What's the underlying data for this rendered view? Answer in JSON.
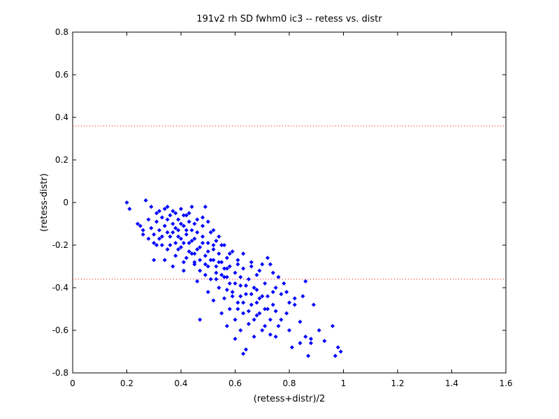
{
  "chart_data": {
    "type": "scatter",
    "title": "191v2 rh SD fwhm0 ic3 -- retess vs. distr",
    "xlabel": "(retess+distr)/2",
    "ylabel": "(retess-distr)",
    "xlim": [
      0,
      1.6
    ],
    "ylim": [
      -0.8,
      0.8
    ],
    "xticks": [
      "0",
      "0.2",
      "0.4",
      "0.6",
      "0.8",
      "1",
      "1.2",
      "1.4",
      "1.6"
    ],
    "yticks": [
      "-0.8",
      "-0.6",
      "-0.4",
      "-0.2",
      "0",
      "0.2",
      "0.4",
      "0.6",
      "0.8"
    ],
    "grid": false,
    "reference_lines": [
      {
        "y": 0.36,
        "color": "#ff0000",
        "style": "dotted"
      },
      {
        "y": -0.36,
        "color": "#ff0000",
        "style": "dotted"
      }
    ],
    "series": [
      {
        "color": "#0000ff",
        "marker": "diamond",
        "points": [
          [
            0.2,
            0.0
          ],
          [
            0.21,
            -0.03
          ],
          [
            0.27,
            0.01
          ],
          [
            0.24,
            -0.1
          ],
          [
            0.25,
            -0.11
          ],
          [
            0.26,
            -0.13
          ],
          [
            0.28,
            -0.08
          ],
          [
            0.29,
            -0.12
          ],
          [
            0.3,
            -0.15
          ],
          [
            0.3,
            -0.19
          ],
          [
            0.31,
            -0.05
          ],
          [
            0.31,
            -0.09
          ],
          [
            0.32,
            -0.13
          ],
          [
            0.32,
            -0.17
          ],
          [
            0.33,
            -0.07
          ],
          [
            0.33,
            -0.2
          ],
          [
            0.34,
            -0.03
          ],
          [
            0.34,
            -0.11
          ],
          [
            0.35,
            -0.14
          ],
          [
            0.35,
            -0.22
          ],
          [
            0.36,
            -0.06
          ],
          [
            0.36,
            -0.16
          ],
          [
            0.37,
            -0.04
          ],
          [
            0.37,
            -0.1
          ],
          [
            0.38,
            -0.19
          ],
          [
            0.38,
            -0.25
          ],
          [
            0.39,
            -0.08
          ],
          [
            0.39,
            -0.13
          ],
          [
            0.4,
            -0.03
          ],
          [
            0.4,
            -0.17
          ],
          [
            0.4,
            -0.21
          ],
          [
            0.41,
            -0.11
          ],
          [
            0.41,
            -0.28
          ],
          [
            0.42,
            -0.06
          ],
          [
            0.42,
            -0.15
          ],
          [
            0.43,
            -0.19
          ],
          [
            0.43,
            -0.09
          ],
          [
            0.44,
            -0.02
          ],
          [
            0.44,
            -0.13
          ],
          [
            0.44,
            -0.24
          ],
          [
            0.45,
            -0.17
          ],
          [
            0.45,
            -0.29
          ],
          [
            0.46,
            -0.14
          ],
          [
            0.46,
            -0.08
          ],
          [
            0.47,
            -0.21
          ],
          [
            0.47,
            -0.32
          ],
          [
            0.48,
            -0.16
          ],
          [
            0.48,
            -0.11
          ],
          [
            0.49,
            -0.25
          ],
          [
            0.49,
            -0.02
          ],
          [
            0.5,
            -0.19
          ],
          [
            0.5,
            -0.3
          ],
          [
            0.51,
            -0.14
          ],
          [
            0.51,
            -0.36
          ],
          [
            0.52,
            -0.22
          ],
          [
            0.52,
            -0.27
          ],
          [
            0.53,
            -0.18
          ],
          [
            0.53,
            -0.33
          ],
          [
            0.54,
            -0.24
          ],
          [
            0.54,
            -0.4
          ],
          [
            0.55,
            -0.28
          ],
          [
            0.55,
            -0.2
          ],
          [
            0.56,
            -0.35
          ],
          [
            0.56,
            -0.45
          ],
          [
            0.57,
            -0.26
          ],
          [
            0.57,
            -0.31
          ],
          [
            0.58,
            -0.38
          ],
          [
            0.58,
            -0.5
          ],
          [
            0.59,
            -0.23
          ],
          [
            0.59,
            -0.42
          ],
          [
            0.6,
            -0.33
          ],
          [
            0.6,
            -0.55
          ],
          [
            0.61,
            -0.29
          ],
          [
            0.61,
            -0.47
          ],
          [
            0.62,
            -0.39
          ],
          [
            0.62,
            -0.6
          ],
          [
            0.63,
            -0.31
          ],
          [
            0.63,
            -0.52
          ],
          [
            0.64,
            -0.43
          ],
          [
            0.64,
            -0.69
          ],
          [
            0.65,
            -0.36
          ],
          [
            0.65,
            -0.57
          ],
          [
            0.66,
            -0.3
          ],
          [
            0.66,
            -0.48
          ],
          [
            0.67,
            -0.4
          ],
          [
            0.67,
            -0.63
          ],
          [
            0.68,
            -0.34
          ],
          [
            0.68,
            -0.53
          ],
          [
            0.69,
            -0.45
          ],
          [
            0.7,
            -0.29
          ],
          [
            0.7,
            -0.6
          ],
          [
            0.71,
            -0.38
          ],
          [
            0.71,
            -0.5
          ],
          [
            0.72,
            -0.26
          ],
          [
            0.72,
            -0.44
          ],
          [
            0.73,
            -0.55
          ],
          [
            0.74,
            -0.33
          ],
          [
            0.74,
            -0.48
          ],
          [
            0.75,
            -0.63
          ],
          [
            0.75,
            -0.4
          ],
          [
            0.76,
            -0.58
          ],
          [
            0.77,
            -0.43
          ],
          [
            0.78,
            -0.38
          ],
          [
            0.79,
            -0.52
          ],
          [
            0.8,
            -0.6
          ],
          [
            0.81,
            -0.68
          ],
          [
            0.82,
            -0.48
          ],
          [
            0.84,
            -0.56
          ],
          [
            0.86,
            -0.37
          ],
          [
            0.86,
            -0.63
          ],
          [
            0.87,
            -0.72
          ],
          [
            0.88,
            -0.66
          ],
          [
            0.89,
            -0.48
          ],
          [
            0.91,
            -0.6
          ],
          [
            0.93,
            -0.65
          ],
          [
            0.96,
            -0.58
          ],
          [
            0.97,
            -0.72
          ],
          [
            0.98,
            -0.68
          ],
          [
            0.99,
            -0.7
          ],
          [
            0.85,
            -0.44
          ],
          [
            0.3,
            -0.27
          ],
          [
            0.34,
            -0.27
          ],
          [
            0.37,
            -0.3
          ],
          [
            0.41,
            -0.32
          ],
          [
            0.46,
            -0.37
          ],
          [
            0.47,
            -0.55
          ],
          [
            0.5,
            -0.42
          ],
          [
            0.52,
            -0.46
          ],
          [
            0.55,
            -0.52
          ],
          [
            0.57,
            -0.58
          ],
          [
            0.6,
            -0.64
          ],
          [
            0.63,
            -0.71
          ],
          [
            0.29,
            -0.02
          ],
          [
            0.32,
            -0.04
          ],
          [
            0.35,
            -0.02
          ],
          [
            0.38,
            -0.05
          ],
          [
            0.41,
            -0.06
          ],
          [
            0.43,
            -0.05
          ],
          [
            0.45,
            -0.1
          ],
          [
            0.48,
            -0.07
          ],
          [
            0.5,
            -0.09
          ],
          [
            0.52,
            -0.13
          ],
          [
            0.54,
            -0.16
          ],
          [
            0.56,
            -0.2
          ],
          [
            0.58,
            -0.24
          ],
          [
            0.61,
            -0.27
          ],
          [
            0.63,
            -0.24
          ],
          [
            0.66,
            -0.28
          ],
          [
            0.69,
            -0.32
          ],
          [
            0.73,
            -0.29
          ],
          [
            0.76,
            -0.35
          ],
          [
            0.79,
            -0.42
          ],
          [
            0.82,
            -0.45
          ],
          [
            0.74,
            -0.42
          ],
          [
            0.68,
            -0.41
          ],
          [
            0.62,
            -0.35
          ],
          [
            0.57,
            -0.35
          ],
          [
            0.53,
            -0.36
          ],
          [
            0.49,
            -0.34
          ],
          [
            0.45,
            -0.28
          ],
          [
            0.42,
            -0.26
          ],
          [
            0.39,
            -0.22
          ],
          [
            0.36,
            -0.2
          ],
          [
            0.33,
            -0.16
          ],
          [
            0.31,
            -0.2
          ],
          [
            0.28,
            -0.17
          ],
          [
            0.26,
            -0.15
          ],
          [
            0.38,
            -0.12
          ],
          [
            0.4,
            -0.1
          ],
          [
            0.42,
            -0.13
          ],
          [
            0.44,
            -0.18
          ],
          [
            0.46,
            -0.22
          ],
          [
            0.48,
            -0.19
          ],
          [
            0.5,
            -0.23
          ],
          [
            0.52,
            -0.2
          ],
          [
            0.54,
            -0.28
          ],
          [
            0.56,
            -0.31
          ],
          [
            0.58,
            -0.3
          ],
          [
            0.6,
            -0.38
          ],
          [
            0.62,
            -0.44
          ],
          [
            0.64,
            -0.39
          ],
          [
            0.66,
            -0.43
          ],
          [
            0.68,
            -0.47
          ],
          [
            0.7,
            -0.44
          ],
          [
            0.72,
            -0.5
          ],
          [
            0.35,
            -0.08
          ],
          [
            0.37,
            -0.14
          ],
          [
            0.39,
            -0.16
          ],
          [
            0.41,
            -0.19
          ],
          [
            0.43,
            -0.23
          ],
          [
            0.45,
            -0.24
          ],
          [
            0.47,
            -0.27
          ],
          [
            0.49,
            -0.29
          ],
          [
            0.51,
            -0.27
          ],
          [
            0.53,
            -0.3
          ],
          [
            0.55,
            -0.34
          ],
          [
            0.57,
            -0.41
          ],
          [
            0.59,
            -0.44
          ],
          [
            0.61,
            -0.5
          ],
          [
            0.63,
            -0.47
          ],
          [
            0.65,
            -0.51
          ],
          [
            0.67,
            -0.55
          ],
          [
            0.69,
            -0.52
          ],
          [
            0.71,
            -0.58
          ],
          [
            0.73,
            -0.62
          ],
          [
            0.75,
            -0.51
          ],
          [
            0.77,
            -0.55
          ],
          [
            0.8,
            -0.47
          ],
          [
            0.84,
            -0.66
          ],
          [
            0.88,
            -0.64
          ]
        ]
      }
    ]
  }
}
